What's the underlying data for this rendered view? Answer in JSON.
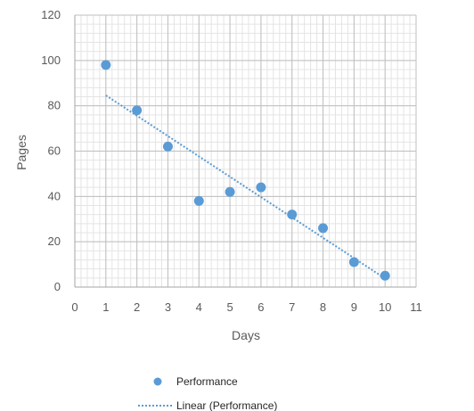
{
  "chart_data": {
    "type": "scatter",
    "title": "",
    "xlabel": "Days",
    "ylabel": "Pages",
    "xlim": [
      0,
      11
    ],
    "ylim": [
      0,
      120
    ],
    "x_ticks": [
      "0",
      "1",
      "2",
      "3",
      "4",
      "5",
      "6",
      "7",
      "8",
      "9",
      "10",
      "11"
    ],
    "y_ticks": [
      "0",
      "20",
      "40",
      "60",
      "80",
      "100",
      "120"
    ],
    "grid": true,
    "minor_grid": true,
    "legend_position": "bottom",
    "series": [
      {
        "name": "Performance",
        "kind": "scatter",
        "color": "#5b9bd5",
        "x": [
          1,
          2,
          3,
          4,
          5,
          6,
          7,
          8,
          9,
          10
        ],
        "y": [
          98,
          78,
          62,
          38,
          42,
          44,
          32,
          26,
          11,
          5
        ]
      },
      {
        "name": "Linear (Performance)",
        "kind": "trendline",
        "style": "dotted",
        "color": "#5b9bd5",
        "x": [
          1,
          10
        ],
        "y": [
          84.6,
          3.8
        ]
      }
    ]
  }
}
